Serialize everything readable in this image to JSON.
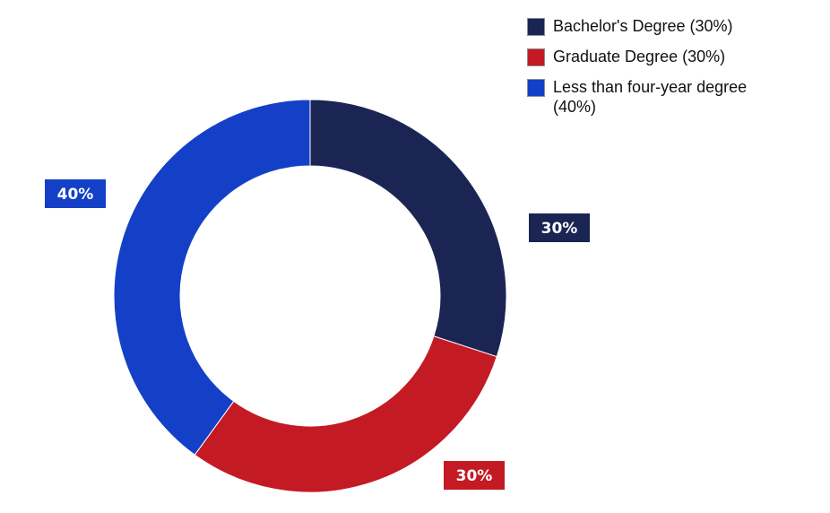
{
  "chart_data": {
    "type": "pie",
    "donut": true,
    "title": "",
    "legend_position": "top-right",
    "slices": [
      {
        "label": "Bachelor's Degree (30%)",
        "value": 30,
        "value_label": "30%",
        "color": "#1a2553"
      },
      {
        "label": "Graduate Degree (30%)",
        "value": 30,
        "value_label": "30%",
        "color": "#c41a24"
      },
      {
        "label": "Less than four-year degree (40%)",
        "value": 40,
        "value_label": "40%",
        "color": "#1440c8"
      }
    ]
  }
}
